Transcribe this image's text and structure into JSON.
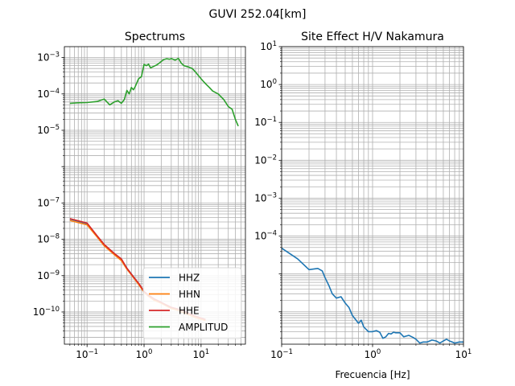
{
  "suptitle": "GUVI 252.04[km]",
  "chart_data": [
    {
      "type": "line",
      "title": "Spectrums",
      "xlabel": "",
      "ylabel": "",
      "xscale": "log",
      "yscale": "log",
      "xlim": [
        0.04,
        60
      ],
      "ylim": [
        1.3e-11,
        0.002
      ],
      "xticks": [
        {
          "v": 0.1,
          "base": "10",
          "exp": "−1"
        },
        {
          "v": 1,
          "base": "10",
          "exp": "0"
        },
        {
          "v": 10,
          "base": "10",
          "exp": "1"
        }
      ],
      "yticks": [
        {
          "v": 1e-10,
          "base": "10",
          "exp": "−10"
        },
        {
          "v": 1e-09,
          "base": "10",
          "exp": "−9"
        },
        {
          "v": 1e-08,
          "base": "10",
          "exp": "−8"
        },
        {
          "v": 1e-07,
          "base": "10",
          "exp": "−7"
        },
        {
          "v": 1e-05,
          "base": "10",
          "exp": "−5"
        },
        {
          "v": 0.0001,
          "base": "10",
          "exp": "−4"
        },
        {
          "v": 0.001,
          "base": "10",
          "exp": "−3"
        }
      ],
      "grid": "both",
      "legend_position": "lower-right",
      "series": [
        {
          "name": "HHZ",
          "color": "#1f77b4",
          "x": [
            0.05,
            0.1,
            0.15,
            0.2,
            0.3,
            0.4,
            0.5,
            0.6,
            0.7,
            0.8,
            1.0,
            1.2,
            1.5,
            2.0,
            2.5,
            3.0,
            4.0,
            5.0,
            6.0
          ],
          "y": [
            3.6e-08,
            2.7e-08,
            1.2e-08,
            7e-09,
            4e-09,
            2.8e-09,
            1.6e-09,
            1.1e-09,
            8e-10,
            6e-10,
            3.6e-10,
            2.8e-10,
            2.2e-10,
            1.8e-10,
            1.5e-10,
            1.3e-10,
            1.15e-10,
            1e-10,
            9e-11
          ]
        },
        {
          "name": "HHN",
          "color": "#ff7f0e",
          "x": [
            0.05,
            0.1,
            0.15,
            0.2,
            0.3,
            0.4,
            0.5,
            0.6,
            0.7,
            0.8,
            1.0,
            1.2,
            1.5,
            2.0,
            2.5,
            3.0,
            4.0,
            5.0,
            6.0,
            8.0,
            10.0,
            12.0
          ],
          "y": [
            3.3e-08,
            2.5e-08,
            1.15e-08,
            6.6e-09,
            3.8e-09,
            2.6e-09,
            1.5e-09,
            1.05e-09,
            7.6e-10,
            5.8e-10,
            3.5e-10,
            2.7e-10,
            2.1e-10,
            1.75e-10,
            1.45e-10,
            1.25e-10,
            1.1e-10,
            9.5e-11,
            8.5e-11,
            7e-11,
            6.3e-11,
            5.8e-11
          ]
        },
        {
          "name": "HHE",
          "color": "#d62728",
          "x": [
            0.05,
            0.1,
            0.15,
            0.2,
            0.3,
            0.4,
            0.5,
            0.6,
            0.7,
            0.8,
            1.0,
            1.2,
            1.5,
            2.0,
            2.5,
            3.0,
            4.0,
            5.0,
            6.0,
            8.0,
            10.0,
            12.0
          ],
          "y": [
            3.7e-08,
            2.8e-08,
            1.25e-08,
            7.2e-09,
            4.1e-09,
            2.9e-09,
            1.6e-09,
            1.1e-09,
            8e-10,
            6.2e-10,
            3.7e-10,
            2.9e-10,
            2.3e-10,
            1.85e-10,
            1.55e-10,
            1.35e-10,
            1.2e-10,
            1.05e-10,
            9.3e-11,
            7.6e-11,
            6.8e-11,
            6.2e-11
          ]
        },
        {
          "name": "AMPLITUD",
          "color": "#2ca02c",
          "x": [
            0.05,
            0.07,
            0.1,
            0.15,
            0.2,
            0.25,
            0.3,
            0.35,
            0.4,
            0.45,
            0.5,
            0.55,
            0.6,
            0.65,
            0.7,
            0.8,
            0.9,
            1.0,
            1.1,
            1.2,
            1.3,
            1.5,
            1.7,
            2.0,
            2.2,
            2.5,
            2.8,
            3.0,
            3.5,
            4.0,
            4.5,
            5.0,
            6.0,
            7.0,
            8.0,
            9.0,
            10.0,
            12.0,
            14.0,
            16.0,
            20.0,
            25.0,
            30.0,
            35.0,
            40.0,
            45.0
          ],
          "y": [
            5.5e-05,
            5.7e-05,
            5.8e-05,
            6.2e-05,
            7.2e-05,
            5e-05,
            6e-05,
            6.5e-05,
            5.5e-05,
            7e-05,
            0.000125,
            0.0001,
            0.00015,
            0.00013,
            0.00016,
            0.00026,
            0.0003,
            0.00065,
            0.0006,
            0.00066,
            0.00052,
            0.00058,
            0.00064,
            0.00078,
            0.00088,
            0.00093,
            0.0009,
            0.00094,
            0.00085,
            0.00095,
            0.0007,
            0.0006,
            0.00055,
            0.0005,
            0.0004,
            0.00032,
            0.00026,
            0.00019,
            0.00015,
            0.00012,
            0.0001,
            7e-05,
            4.5e-05,
            3.8e-05,
            2e-05,
            1.3e-05
          ]
        }
      ]
    },
    {
      "type": "line",
      "title": "Site Effect H/V Nakamura",
      "xlabel": "Frecuencia [Hz]",
      "ylabel": "",
      "xscale": "log",
      "yscale": "log",
      "xlim": [
        0.1,
        10
      ],
      "ylim": [
        1.4e-07,
        10
      ],
      "xticks": [
        {
          "v": 0.1,
          "base": "10",
          "exp": "−1"
        },
        {
          "v": 1,
          "base": "10",
          "exp": "0"
        },
        {
          "v": 10,
          "base": "10",
          "exp": "1"
        }
      ],
      "yticks": [
        {
          "v": 0.0001,
          "base": "10",
          "exp": "−4"
        },
        {
          "v": 0.001,
          "base": "10",
          "exp": "−3"
        },
        {
          "v": 0.01,
          "base": "10",
          "exp": "−2"
        },
        {
          "v": 0.1,
          "base": "10",
          "exp": "−1"
        },
        {
          "v": 1,
          "base": "10",
          "exp": "0"
        },
        {
          "v": 10,
          "base": "10",
          "exp": "1"
        }
      ],
      "grid": "both",
      "series": [
        {
          "color": "#1f77b4",
          "x": [
            0.1,
            0.15,
            0.2,
            0.25,
            0.28,
            0.3,
            0.33,
            0.36,
            0.4,
            0.45,
            0.5,
            0.55,
            0.6,
            0.7,
            0.75,
            0.8,
            0.9,
            1.0,
            1.1,
            1.2,
            1.3,
            1.4,
            1.5,
            1.6,
            1.7,
            1.8,
            2.0,
            2.2,
            2.5,
            2.8,
            3.0,
            3.3,
            3.6,
            4.0,
            4.5,
            5.0,
            5.5,
            6.0,
            6.5,
            7.0,
            7.5,
            8.0,
            9.0,
            10.0
          ],
          "y": [
            4.8e-05,
            2.5e-05,
            1.3e-05,
            1.4e-05,
            1.2e-05,
            8e-06,
            5e-06,
            3e-06,
            2.3e-06,
            2.5e-06,
            1.7e-06,
            1.3e-06,
            8e-07,
            5e-07,
            6e-07,
            4e-07,
            3e-07,
            3e-07,
            3.2e-07,
            2.9e-07,
            2e-07,
            2.2e-07,
            2.7e-07,
            2.6e-07,
            2.9e-07,
            2.8e-07,
            2.8e-07,
            2.2e-07,
            2.4e-07,
            2.1e-07,
            1.9e-07,
            1.5e-07,
            1.6e-07,
            1.6e-07,
            1.8e-07,
            1.7e-07,
            1.5e-07,
            1.7e-07,
            1.9e-07,
            1.7e-07,
            1.6e-07,
            1.5e-07,
            1.6e-07,
            1.6e-07
          ]
        }
      ]
    }
  ]
}
